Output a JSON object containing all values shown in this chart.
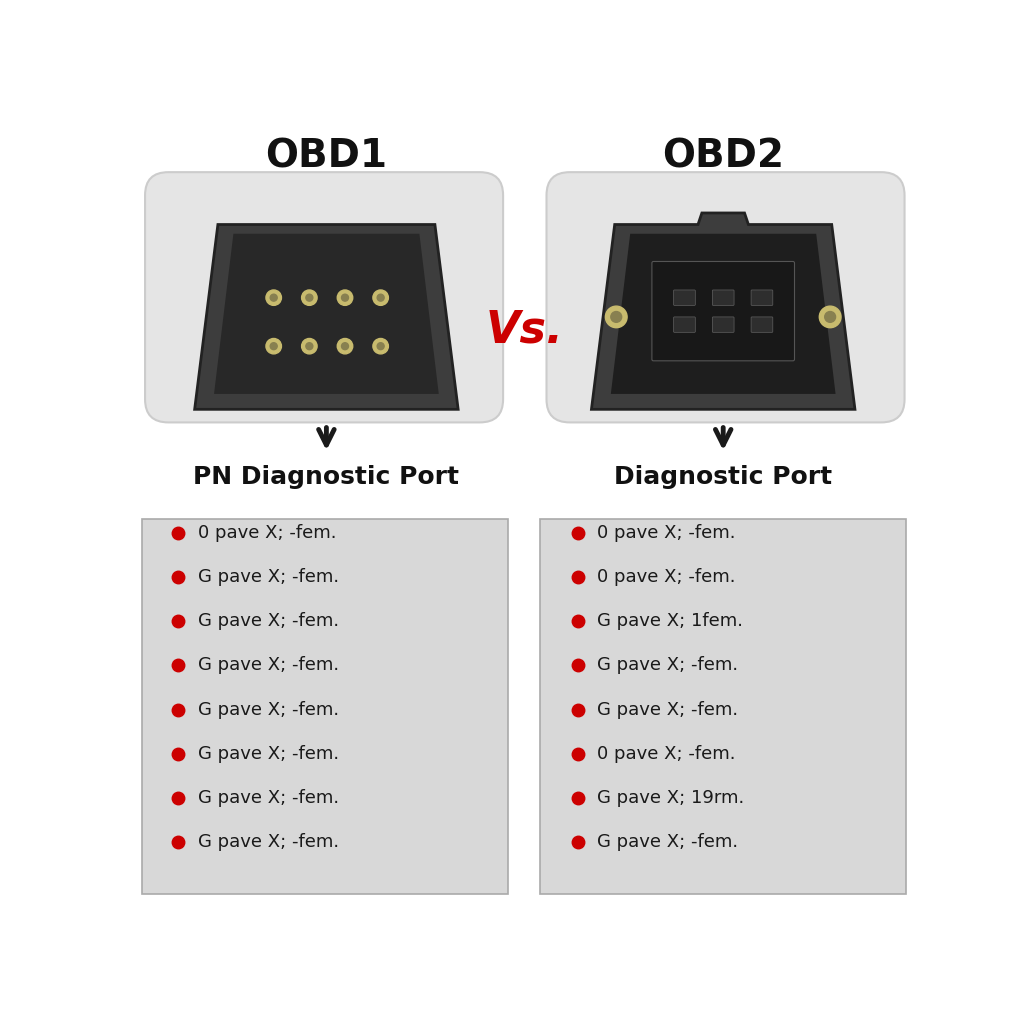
{
  "title_left": "OBD1",
  "title_right": "OBD2",
  "vs_text": "Vs.",
  "subtitle_left": "PN Diagnostic Port",
  "subtitle_right": "Diagnostic Port",
  "bg_color": "#ffffff",
  "box_bg": "#e5e5e5",
  "list_bg": "#d8d8d8",
  "bullet_color": "#cc0000",
  "title_fontsize": 28,
  "subtitle_fontsize": 18,
  "vs_fontsize": 32,
  "list_fontsize": 13,
  "obd1_bullets": [
    "0 pave X; -fem.",
    "G pave X; -fem.",
    "G pave X; -fem.",
    "G pave X; -fem.",
    "G pave X; -fem.",
    "G pave X; -fem.",
    "G pave X; -fem.",
    "G pave X; -fem."
  ],
  "obd2_bullets": [
    "0 pave X; -fem.",
    "0 pave X; -fem.",
    "G pave X; 1fem.",
    "G pave X; -fem.",
    "G pave X; -fem.",
    "0 pave X; -fem.",
    "G pave X; 19rm.",
    "G pave X; -fem."
  ]
}
